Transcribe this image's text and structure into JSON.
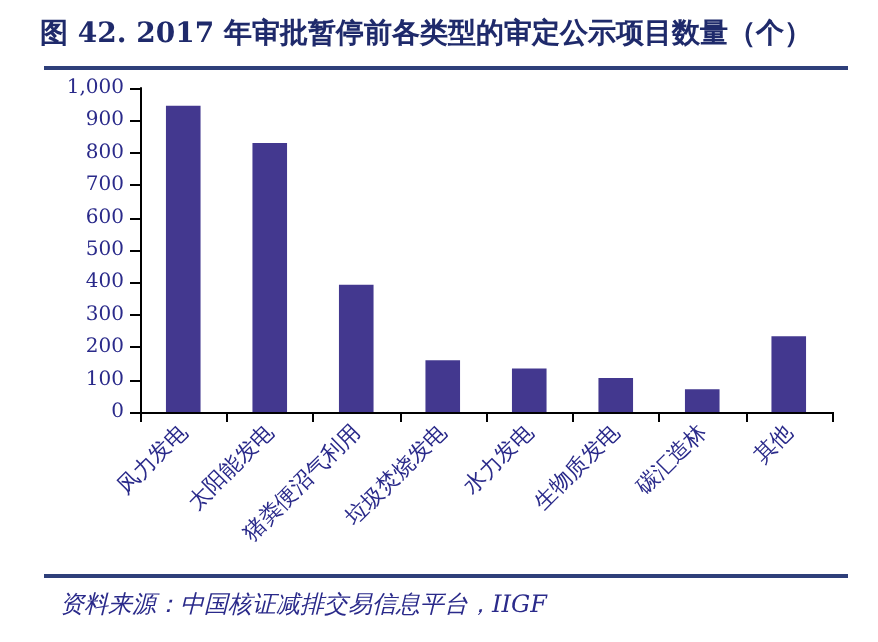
{
  "chart_data": {
    "type": "bar",
    "title": "图 42. 2017 年审批暂停前各类型的审定公示项目数量（个）",
    "categories": [
      "风力发电",
      "太阳能发电",
      "猪粪便沼气利用",
      "垃圾焚烧发电",
      "水力发电",
      "生物质发电",
      "碳汇造林",
      "其他"
    ],
    "values": [
      945,
      830,
      393,
      160,
      134,
      105,
      70,
      234
    ],
    "color": "#43388f",
    "ylim": [
      0,
      1000
    ],
    "yticks": [
      0,
      100,
      200,
      300,
      400,
      500,
      600,
      700,
      800,
      900,
      {
        "value": 1000,
        "label": "1,000"
      }
    ],
    "grid": false,
    "annotations": [
      "资料来源：中国核证减排交易信息平台，IIGF"
    ]
  }
}
